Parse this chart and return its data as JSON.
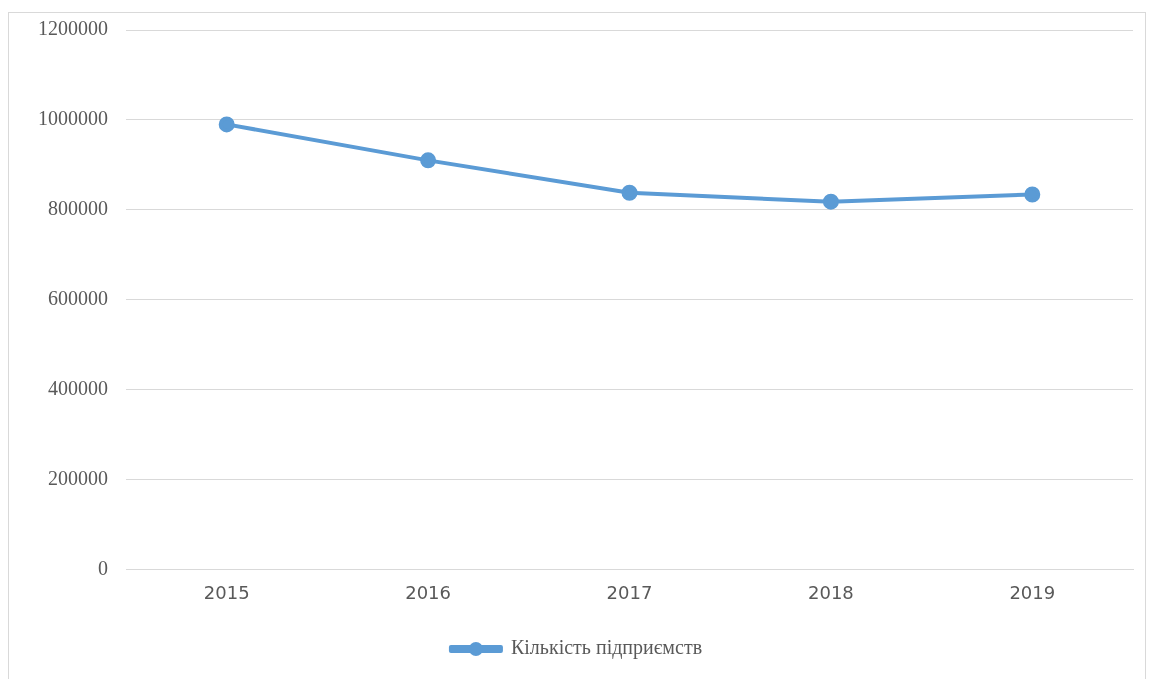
{
  "chart_data": {
    "type": "line",
    "categories": [
      "2015",
      "2016",
      "2017",
      "2018",
      "2019"
    ],
    "series": [
      {
        "name": "Кількість підприємств",
        "color": "#5b9bd5",
        "values": [
          990000,
          910000,
          838000,
          818000,
          834000
        ]
      }
    ],
    "ylim": [
      0,
      1200000
    ],
    "yticks": [
      0,
      200000,
      400000,
      600000,
      800000,
      1000000,
      1200000
    ],
    "grid": "y",
    "legend": "bottom",
    "marker": "circle",
    "line_style": "solid"
  }
}
